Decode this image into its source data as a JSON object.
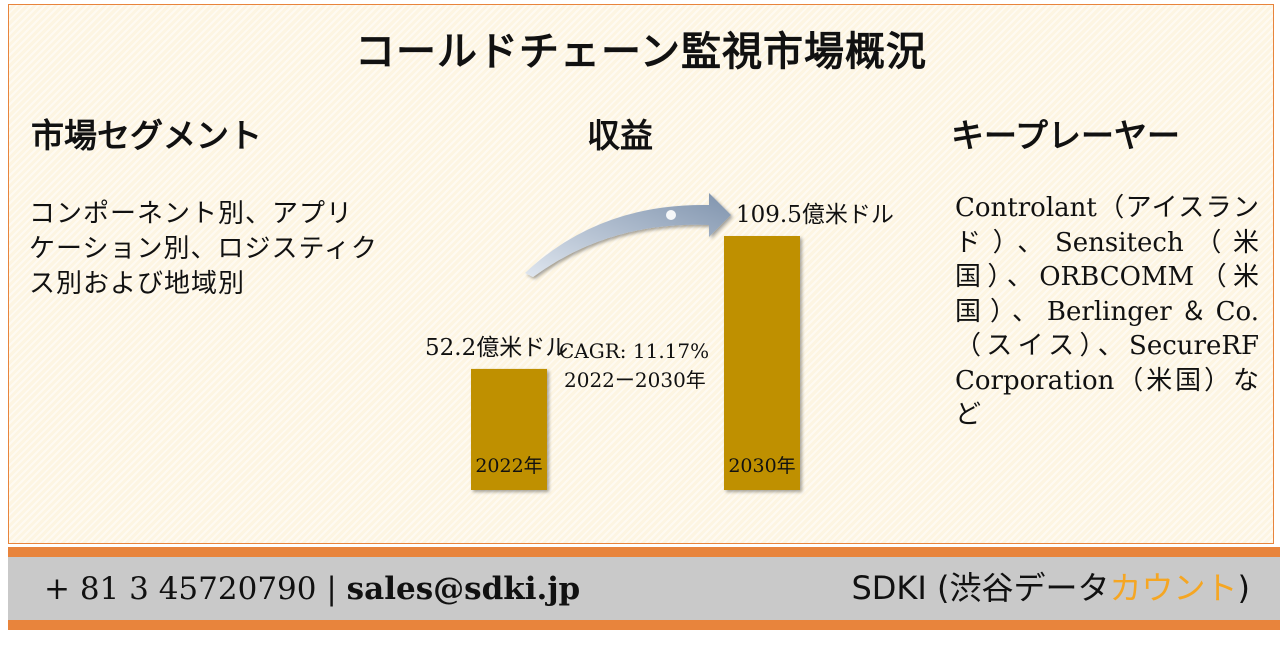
{
  "title": "コールドチェーン監視市場概況",
  "sections": {
    "segments": {
      "heading": "市場セグメント",
      "text": "コンポーネント別、アプリケーション別、ロジスティクス別および地域別"
    },
    "revenue": {
      "heading": "収益"
    },
    "key_players": {
      "heading": "キープレーヤー",
      "text": "Controlant（アイスランド）、Sensitech（米国）、ORBCOMM（米国）、Berlinger＆Co.（スイス）、SecureRF Corporation（米国）など"
    }
  },
  "chart_data": {
    "type": "bar",
    "categories": [
      "2022年",
      "2030年"
    ],
    "values": [
      52.2,
      109.5
    ],
    "value_labels": [
      "52.2億米ドル",
      "109.5億米ドル"
    ],
    "unit": "億米ドル",
    "annotation": {
      "cagr": "CAGR: 11.17%",
      "period": "2022ー2030年"
    },
    "colors": {
      "bar": "#bf9000",
      "arrow": "#8497b0"
    }
  },
  "footer": {
    "phone": "+ 81 3 45720790",
    "separator": "|",
    "email": "sales@sdki.jp",
    "brand_prefix": "SDKI (渋谷データ",
    "brand_accent": "カウント",
    "brand_suffix": ")",
    "colors": {
      "band": "#e8843c",
      "bar": "#c9c9c9",
      "accent": "#f5a623"
    }
  }
}
